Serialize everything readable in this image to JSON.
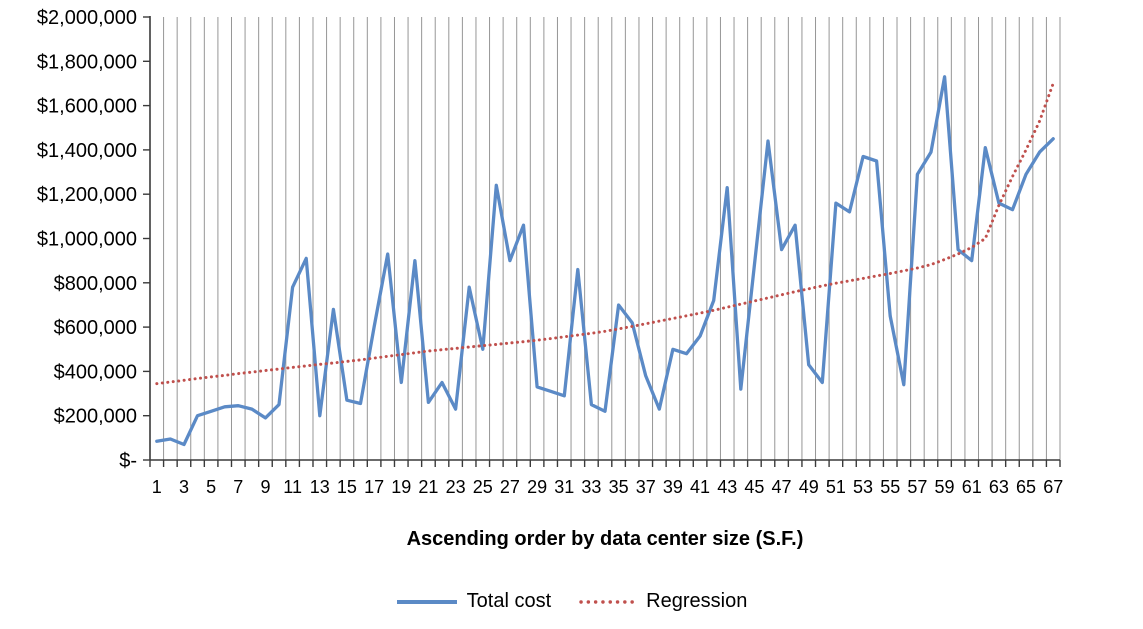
{
  "chart_data": {
    "type": "line",
    "title": "",
    "xlabel": "Ascending order by data center size (S.F.)",
    "ylabel": "",
    "ylim": [
      0,
      2000000
    ],
    "y_tick_interval": 200000,
    "y_tick_labels": [
      "$-",
      "$200,000",
      "$400,000",
      "$600,000",
      "$800,000",
      "$1,000,000",
      "$1,200,000",
      "$1,400,000",
      "$1,600,000",
      "$1,800,000",
      "$2,000,000"
    ],
    "x_label_step": 2,
    "grid": "vertical",
    "legend_position": "bottom",
    "x": [
      1,
      2,
      3,
      4,
      5,
      6,
      7,
      8,
      9,
      10,
      11,
      12,
      13,
      14,
      15,
      16,
      17,
      18,
      19,
      20,
      21,
      22,
      23,
      24,
      25,
      26,
      27,
      28,
      29,
      30,
      31,
      32,
      33,
      34,
      35,
      36,
      37,
      38,
      39,
      40,
      41,
      42,
      43,
      44,
      45,
      46,
      47,
      48,
      49,
      50,
      51,
      52,
      53,
      54,
      55,
      56,
      57,
      58,
      59,
      60,
      61,
      62,
      63,
      64,
      65,
      66,
      67
    ],
    "series": [
      {
        "name": "Total cost",
        "color": "#5b8ac6",
        "style": "solid",
        "values": [
          85000,
          95000,
          70000,
          200000,
          220000,
          240000,
          245000,
          230000,
          190000,
          250000,
          780000,
          910000,
          200000,
          680000,
          270000,
          255000,
          600000,
          930000,
          350000,
          900000,
          260000,
          350000,
          230000,
          780000,
          500000,
          1240000,
          900000,
          1060000,
          330000,
          310000,
          290000,
          860000,
          250000,
          220000,
          700000,
          620000,
          380000,
          230000,
          500000,
          480000,
          560000,
          720000,
          1230000,
          320000,
          880000,
          1440000,
          950000,
          1060000,
          430000,
          350000,
          1160000,
          1120000,
          1370000,
          1350000,
          650000,
          340000,
          1290000,
          1390000,
          1730000,
          950000,
          900000,
          1410000,
          1160000,
          1130000,
          1290000,
          1390000,
          1450000
        ]
      },
      {
        "name": "Regression",
        "color": "#c0504d",
        "style": "dotted",
        "values": [
          345000,
          352000,
          360000,
          368000,
          375000,
          382000,
          390000,
          397000,
          404000,
          411000,
          418000,
          425000,
          432000,
          438000,
          445000,
          452000,
          460000,
          468000,
          476000,
          484000,
          492000,
          498000,
          504000,
          510000,
          516000,
          522000,
          528000,
          534000,
          541000,
          548000,
          556000,
          564000,
          572000,
          581000,
          592000,
          603000,
          615000,
          627000,
          639000,
          651000,
          663000,
          676000,
          690000,
          704000,
          718000,
          732000,
          746000,
          760000,
          773000,
          786000,
          798000,
          809000,
          820000,
          831000,
          842000,
          854000,
          867000,
          882000,
          905000,
          930000,
          960000,
          1000000,
          1150000,
          1280000,
          1400000,
          1530000,
          1700000
        ]
      }
    ]
  },
  "colors": {
    "gridline": "#969696",
    "axis": "#3a3a3a",
    "text": "#000000",
    "background": "#ffffff"
  }
}
